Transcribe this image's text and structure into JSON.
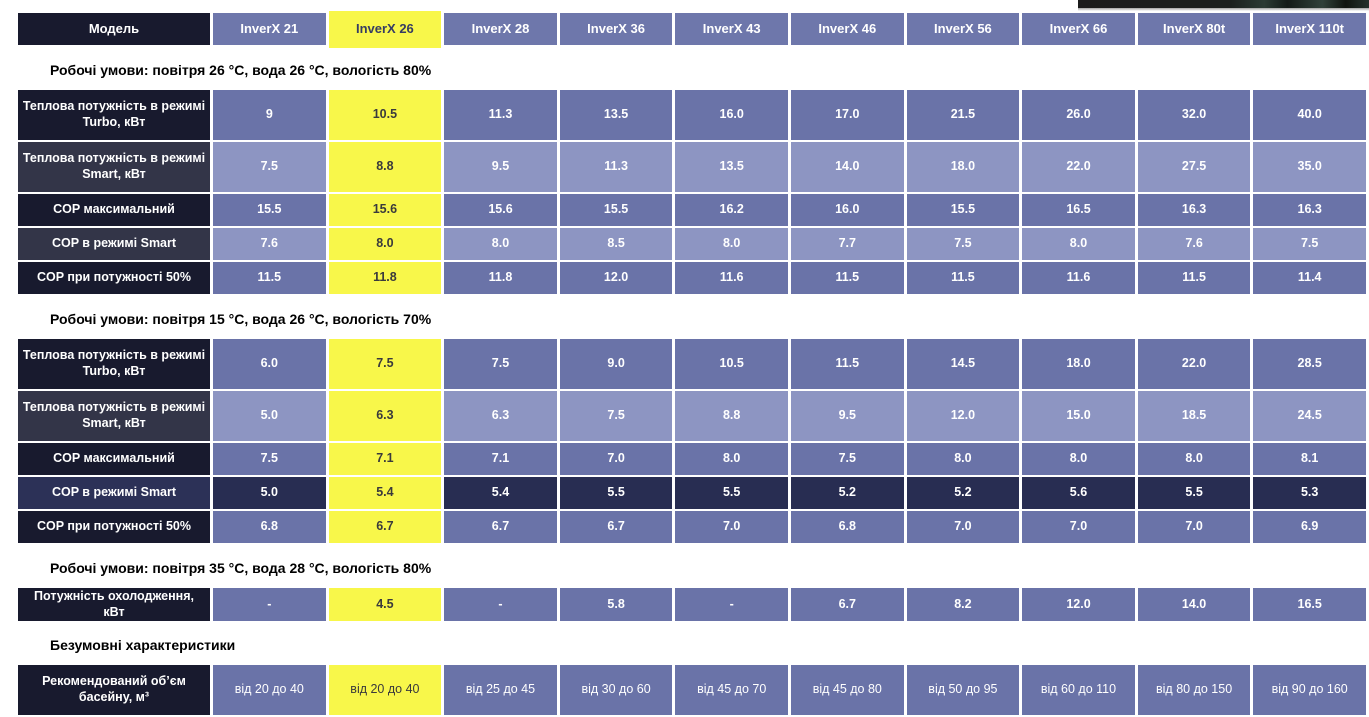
{
  "colors": {
    "highlight_yellow": "#f8f74a",
    "header_dark_navy": "#181a2e",
    "model_header_blue": "#6e77ab",
    "row_label_slate": "#333548",
    "cell_medium_blue": "#6a73a8",
    "cell_light_blue": "#8d95c2",
    "navy_row_label": "#2c3157",
    "navy_row_cell": "#282d52"
  },
  "header": {
    "label": "Модель",
    "highlight_index": 1,
    "models": [
      "InverX 21",
      "InverX 26",
      "InverX 28",
      "InverX 36",
      "InverX 43",
      "InverX 46",
      "InverX 56",
      "InverX 66",
      "InverX 80t",
      "InverX 110t"
    ]
  },
  "sections": [
    {
      "title": "Робочі умови: повітря 26 °С, вода 26 °С, вологість 80%",
      "rows": [
        {
          "label": "Теплова потужність в режимі Turbo, кВт",
          "tone": "a",
          "tall": true,
          "values": [
            "9",
            "10.5",
            "11.3",
            "13.5",
            "16.0",
            "17.0",
            "21.5",
            "26.0",
            "32.0",
            "40.0"
          ]
        },
        {
          "label": "Теплова потужність в режимі Smart, кВт",
          "tone": "b",
          "tall": true,
          "values": [
            "7.5",
            "8.8",
            "9.5",
            "11.3",
            "13.5",
            "14.0",
            "18.0",
            "22.0",
            "27.5",
            "35.0"
          ]
        },
        {
          "label": "COP максимальний",
          "tone": "a",
          "tall": false,
          "values": [
            "15.5",
            "15.6",
            "15.6",
            "15.5",
            "16.2",
            "16.0",
            "15.5",
            "16.5",
            "16.3",
            "16.3"
          ]
        },
        {
          "label": "COP в режимі Smart",
          "tone": "b",
          "tall": false,
          "values": [
            "7.6",
            "8.0",
            "8.0",
            "8.5",
            "8.0",
            "7.7",
            "7.5",
            "8.0",
            "7.6",
            "7.5"
          ]
        },
        {
          "label": "COP при потужності 50%",
          "tone": "a",
          "tall": false,
          "values": [
            "11.5",
            "11.8",
            "11.8",
            "12.0",
            "11.6",
            "11.5",
            "11.5",
            "11.6",
            "11.5",
            "11.4"
          ]
        }
      ]
    },
    {
      "title": "Робочі умови: повітря 15 °С, вода 26 °С, вологість 70%",
      "rows": [
        {
          "label": "Теплова потужність в режимі Turbo, кВт",
          "tone": "a",
          "tall": true,
          "values": [
            "6.0",
            "7.5",
            "7.5",
            "9.0",
            "10.5",
            "11.5",
            "14.5",
            "18.0",
            "22.0",
            "28.5"
          ]
        },
        {
          "label": "Теплова потужність в режимі Smart, кВт",
          "tone": "b",
          "tall": true,
          "values": [
            "5.0",
            "6.3",
            "6.3",
            "7.5",
            "8.8",
            "9.5",
            "12.0",
            "15.0",
            "18.5",
            "24.5"
          ]
        },
        {
          "label": "COP максимальний",
          "tone": "a",
          "tall": false,
          "values": [
            "7.5",
            "7.1",
            "7.1",
            "7.0",
            "8.0",
            "7.5",
            "8.0",
            "8.0",
            "8.0",
            "8.1"
          ]
        },
        {
          "label": "COP в режимі Smart",
          "tone": "n",
          "tall": false,
          "values": [
            "5.0",
            "5.4",
            "5.4",
            "5.5",
            "5.5",
            "5.2",
            "5.2",
            "5.6",
            "5.5",
            "5.3"
          ]
        },
        {
          "label": "COP при потужності 50%",
          "tone": "a",
          "tall": false,
          "values": [
            "6.8",
            "6.7",
            "6.7",
            "6.7",
            "7.0",
            "6.8",
            "7.0",
            "7.0",
            "7.0",
            "6.9"
          ]
        }
      ]
    },
    {
      "title": "Робочі умови: повітря 35 °С, вода 28 °С, вологість 80%",
      "rows": [
        {
          "label": "Потужність охолодження, кВт",
          "tone": "a",
          "tall": false,
          "values": [
            "-",
            "4.5",
            "-",
            "5.8",
            "-",
            "6.7",
            "8.2",
            "12.0",
            "14.0",
            "16.5"
          ]
        }
      ]
    },
    {
      "title": "Безумовні характеристики",
      "rows": [
        {
          "label": "Рекомендований об’єм басейну, м³",
          "tone": "a",
          "tall": true,
          "regular_weight": true,
          "values": [
            "від 20 до 40",
            "від 20 до 40",
            "від 25 до 45",
            "від 30 до 60",
            "від 45 до 70",
            "від 45 до 80",
            "від 50 до 95",
            "від 60 до 110",
            "від 80 до 150",
            "від 90 до 160"
          ]
        }
      ]
    }
  ]
}
